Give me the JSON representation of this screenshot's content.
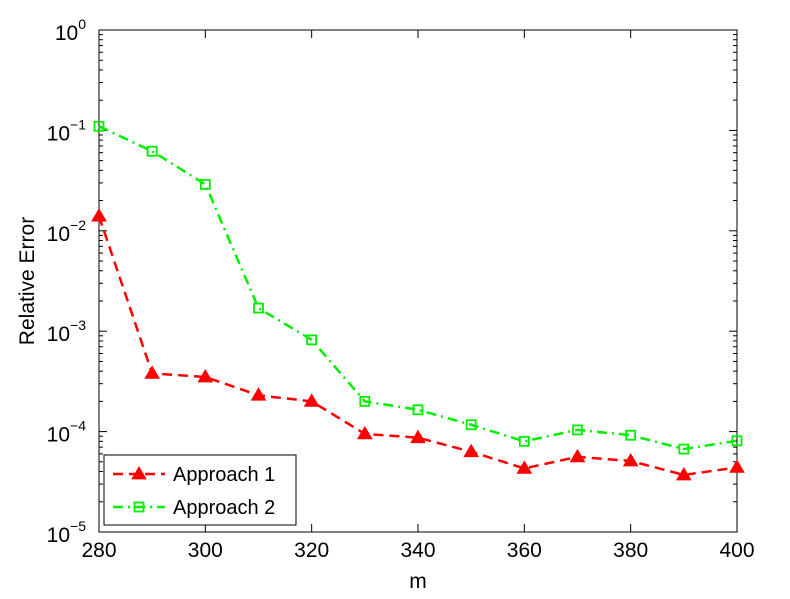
{
  "chart_data": {
    "type": "line",
    "xlabel": "m",
    "ylabel": "Relative Error",
    "y_scale": "log",
    "xlim": [
      280,
      400
    ],
    "ylim": [
      1e-05,
      1
    ],
    "x": [
      280,
      290,
      300,
      310,
      320,
      330,
      340,
      350,
      360,
      370,
      380,
      390,
      400
    ],
    "x_ticks": [
      "280",
      "300",
      "320",
      "340",
      "360",
      "380",
      "400"
    ],
    "y_ticks": [
      {
        "base": "10",
        "exp": "0"
      },
      {
        "base": "10",
        "exp": "−1"
      },
      {
        "base": "10",
        "exp": "−2"
      },
      {
        "base": "10",
        "exp": "−3"
      },
      {
        "base": "10",
        "exp": "−4"
      },
      {
        "base": "10",
        "exp": "−5"
      }
    ],
    "legend_position": "bottom-left",
    "series": [
      {
        "name": "Approach 1",
        "color": "#ff0000",
        "line_style": "dashed",
        "marker": "filled-triangle",
        "values": [
          0.014,
          0.00038,
          0.00035,
          0.00023,
          0.0002,
          9.5e-05,
          8.7e-05,
          6.3e-05,
          4.3e-05,
          5.6e-05,
          5.1e-05,
          3.7e-05,
          4.4e-05
        ]
      },
      {
        "name": "Approach 2",
        "color": "#00ee00",
        "line_style": "dash-dot",
        "marker": "open-square",
        "values": [
          0.11,
          0.062,
          0.029,
          0.0017,
          0.00082,
          0.0002,
          0.000165,
          0.000117,
          8e-05,
          0.000104,
          9.2e-05,
          6.7e-05,
          8.1e-05
        ]
      }
    ]
  }
}
